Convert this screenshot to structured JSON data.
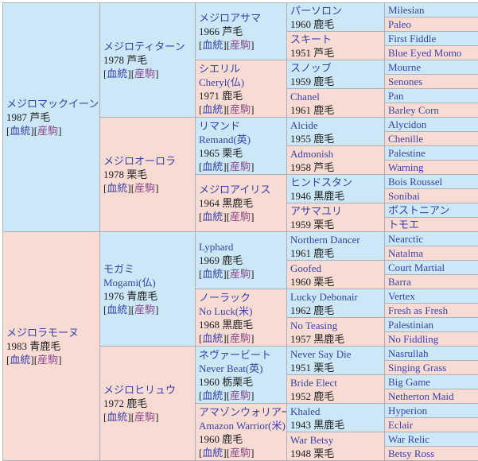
{
  "labels": {
    "bracket_open": "[",
    "bracket_close": "]",
    "pedigree_link": "血統",
    "offspring_link": "産駒"
  },
  "colors": {
    "sire_bg": "#cce7f6",
    "dam_bg": "#f8dcd3",
    "border": "#afafb7",
    "link_blue": "#3a41ab",
    "link_purple": "#8c4a8c",
    "text": "#202122"
  },
  "horses": {
    "mcqueen": {
      "name": "メジロマックイーン",
      "info": "1987 芦毛"
    },
    "lamonu": {
      "name": "メジロラモーヌ",
      "info": "1983 青鹿毛"
    },
    "titan": {
      "name": "メジロティターン",
      "info": "1978 芦毛"
    },
    "aurora": {
      "name": "メジロオーロラ",
      "info": "1978 栗毛"
    },
    "mogami": {
      "name": "モガミ",
      "name2": "Mogami(仏)",
      "info": "1976 青鹿毛"
    },
    "hiryu": {
      "name": "メジロヒリュウ",
      "info": "1972 鹿毛"
    },
    "asama": {
      "name": "メジロアサマ",
      "info": "1966 芦毛"
    },
    "cheryl": {
      "name": "シエリル",
      "name2": "Cheryl(仏)",
      "info": "1971 鹿毛"
    },
    "remand": {
      "name": "リマンド",
      "name2": "Remand(英)",
      "info": "1965 栗毛"
    },
    "iris": {
      "name": "メジロアイリス",
      "info": "1964 黒鹿毛"
    },
    "lyphard": {
      "name": "Lyphard",
      "info": "1969 鹿毛"
    },
    "no_luck": {
      "name": "ノーラック",
      "name2": "No Luck(米)",
      "info": "1968 黒鹿毛"
    },
    "never_beat": {
      "name": "ネヴァービート",
      "name2": "Never Beat(英)",
      "info": "1960 栃栗毛"
    },
    "amazon_warrior": {
      "name": "アマゾンウォリアー",
      "name2": "Amazon Warrior(米)",
      "info": "1960 鹿毛"
    },
    "partholon": {
      "name": "パーソロン",
      "info": "1960 鹿毛"
    },
    "skeet": {
      "name": "スキート",
      "info": "1951 芦毛"
    },
    "snob": {
      "name": "スノッブ",
      "info": "1959 鹿毛"
    },
    "chanel": {
      "name": "Chanel",
      "info": "1961 鹿毛"
    },
    "alcide": {
      "name": "Alcide",
      "info": "1955 鹿毛"
    },
    "admonish": {
      "name": "Admonish",
      "info": "1958 芦毛"
    },
    "hindostan": {
      "name": "ヒンドスタン",
      "info": "1946 黒鹿毛"
    },
    "asamayuri": {
      "name": "アサマユリ",
      "info": "1959 栗毛"
    },
    "northern_dancer": {
      "name": "Northern Dancer",
      "info": "1961 鹿毛"
    },
    "goofed": {
      "name": "Goofed",
      "info": "1960 栗毛"
    },
    "lucky_debonair": {
      "name": "Lucky Debonair",
      "info": "1962 鹿毛"
    },
    "no_teasing": {
      "name": "No Teasing",
      "info": "1957 黒鹿毛"
    },
    "never_say_die": {
      "name": "Never Say Die",
      "info": "1951 栗毛"
    },
    "bride_elect": {
      "name": "Bride Elect",
      "info": "1952 鹿毛"
    },
    "khaled": {
      "name": "Khaled",
      "info": "1943 黒鹿毛"
    },
    "war_betsy": {
      "name": "War Betsy",
      "info": "1948 栗毛"
    },
    "milesian": {
      "name": "Milesian"
    },
    "paleo": {
      "name": "Paleo"
    },
    "first_fiddle": {
      "name": "First Fiddle"
    },
    "blue_eyed_momo": {
      "name": "Blue Eyed Momo"
    },
    "mourne": {
      "name": "Mourne"
    },
    "senones": {
      "name": "Senones"
    },
    "pan": {
      "name": "Pan"
    },
    "barley_corn": {
      "name": "Barley Corn"
    },
    "alycidon": {
      "name": "Alycidon"
    },
    "chenille": {
      "name": "Chenille"
    },
    "palestine": {
      "name": "Palestine"
    },
    "warning": {
      "name": "Warning"
    },
    "bois_roussel": {
      "name": "Bois Roussel"
    },
    "sonibai": {
      "name": "Sonibai"
    },
    "bostonian": {
      "name": "ボストニアン"
    },
    "tomoe": {
      "name": "トモエ"
    },
    "nearctic": {
      "name": "Nearctic"
    },
    "natalma": {
      "name": "Natalma"
    },
    "court_martial": {
      "name": "Court Martial"
    },
    "barra": {
      "name": "Barra"
    },
    "vertex": {
      "name": "Vertex"
    },
    "fresh_as_fresh": {
      "name": "Fresh as Fresh"
    },
    "palestinian": {
      "name": "Palestinian"
    },
    "no_fiddling": {
      "name": "No Fiddling"
    },
    "nasrullah": {
      "name": "Nasrullah"
    },
    "singing_grass": {
      "name": "Singing Grass"
    },
    "big_game": {
      "name": "Big Game"
    },
    "netherton_maid": {
      "name": "Netherton Maid"
    },
    "hyperion": {
      "name": "Hyperion"
    },
    "eclair": {
      "name": "Eclair"
    },
    "war_relic": {
      "name": "War Relic"
    },
    "betsy_ross": {
      "name": "Betsy Ross"
    }
  }
}
